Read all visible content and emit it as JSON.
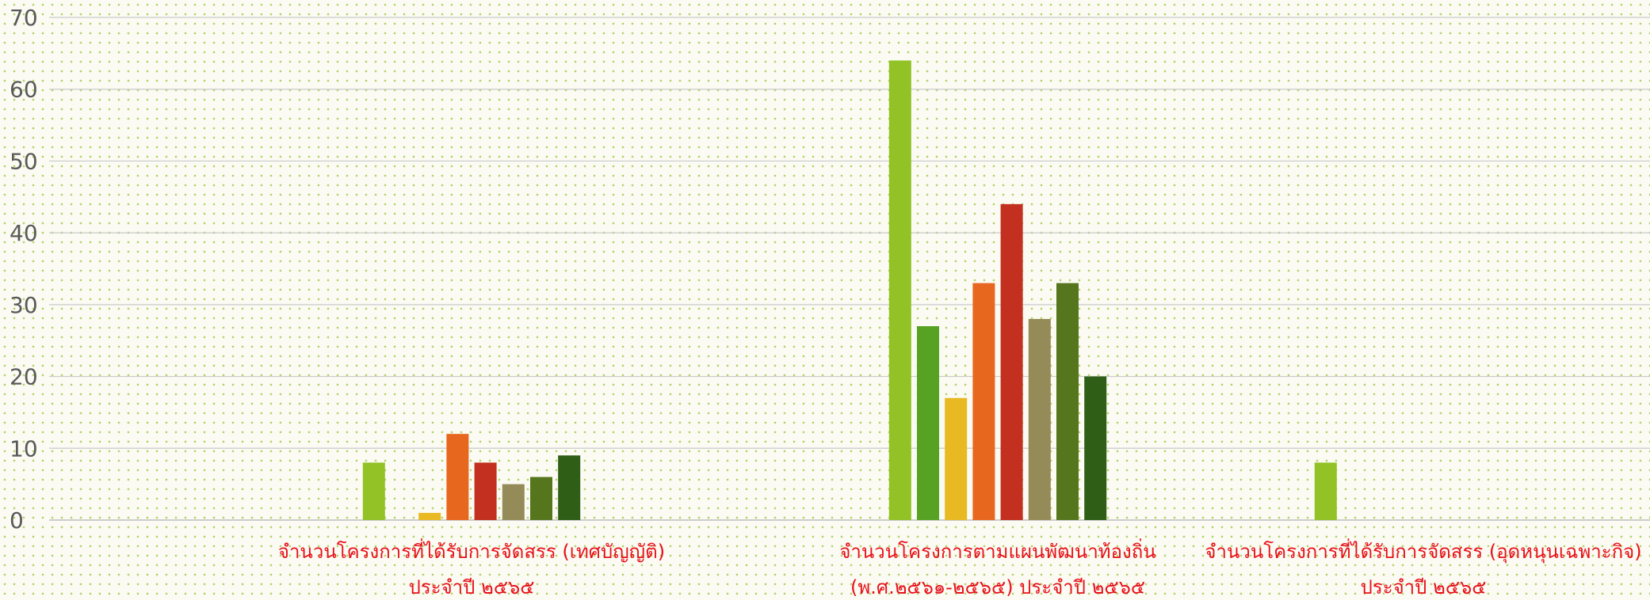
{
  "chart_data": {
    "type": "bar",
    "ylim": [
      0,
      70
    ],
    "yticks": [
      0,
      10,
      20,
      30,
      40,
      50,
      60,
      70
    ],
    "grid": true,
    "categories": [
      {
        "line1": "จำนวนโครงการที่ได้รับการจัดสรร (เทศบัญญัติ)",
        "line2": "ประจำปี ๒๕๖๕"
      },
      {
        "line1": "จำนวนโครงการตามแผนพัฒนาท้องถิ่น",
        "line2": "(พ.ศ.๒๕๖๑-๒๕๖๕) ประจำปี ๒๕๖๕"
      },
      {
        "line1": "จำนวนโครงการที่ได้รับการจัดสรร (อุดหนุนเฉพาะกิจ)",
        "line2": "ประจำปี ๒๕๖๕"
      }
    ],
    "series": [
      {
        "color": "#92c225",
        "values": [
          8,
          64,
          8
        ]
      },
      {
        "color": "#57a123",
        "values": [
          0,
          27,
          0
        ]
      },
      {
        "color": "#e8b923",
        "values": [
          1,
          17,
          0
        ]
      },
      {
        "color": "#e8671e",
        "values": [
          12,
          33,
          0
        ]
      },
      {
        "color": "#c3301f",
        "values": [
          8,
          44,
          0
        ]
      },
      {
        "color": "#958b58",
        "values": [
          5,
          28,
          0
        ]
      },
      {
        "color": "#56761e",
        "values": [
          6,
          33,
          0
        ]
      },
      {
        "color": "#2f5e17",
        "values": [
          9,
          20,
          0
        ]
      }
    ]
  }
}
